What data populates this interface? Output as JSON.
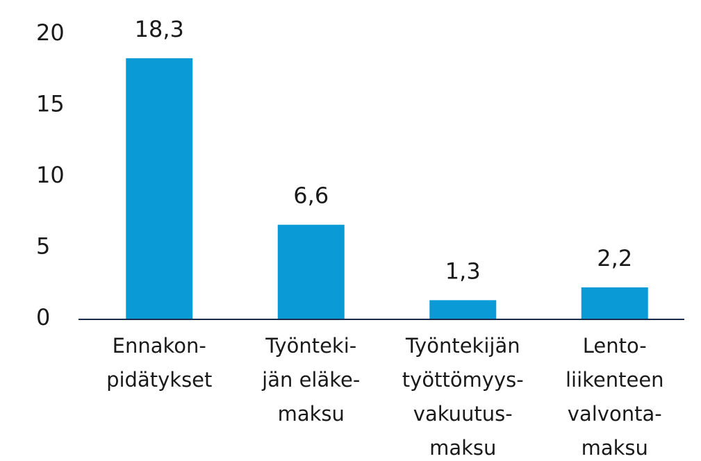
{
  "chart_data": {
    "type": "bar",
    "categories": [
      [
        "Ennakon-",
        "pidätykset"
      ],
      [
        "Työnteki-",
        "jän eläke-",
        "maksu"
      ],
      [
        "Työntekijän",
        "työttömyys-",
        "vakuutus-",
        "maksu"
      ],
      [
        "Lento-",
        "liikenteen",
        "valvonta-",
        "maksu"
      ]
    ],
    "values": [
      18.3,
      6.6,
      1.3,
      2.2
    ],
    "value_labels": [
      "18,3",
      "6,6",
      "1,3",
      "2,2"
    ],
    "color": "#0a9bd7",
    "ylim": [
      0,
      20
    ],
    "yticks": [
      0,
      5,
      10,
      15,
      20
    ],
    "grid": false
  }
}
